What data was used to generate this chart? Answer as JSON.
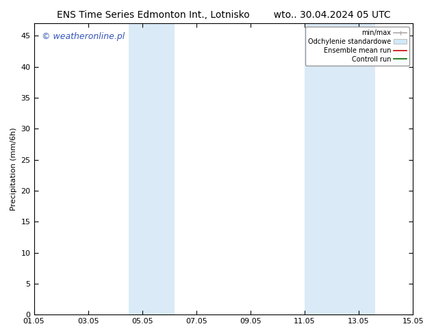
{
  "title_left": "ENS Time Series Edmonton Int., Lotnisko",
  "title_right": "wto.. 30.04.2024 05 UTC",
  "ylabel": "Precipitation (mm/6h)",
  "ylim": [
    0,
    47
  ],
  "yticks": [
    0,
    5,
    10,
    15,
    20,
    25,
    30,
    35,
    40,
    45
  ],
  "xlim": [
    0,
    14
  ],
  "xtick_labels": [
    "01.05",
    "03.05",
    "05.05",
    "07.05",
    "09.05",
    "11.05",
    "13.05",
    "15.05"
  ],
  "xtick_positions": [
    0,
    2,
    4,
    6,
    8,
    10,
    12,
    14
  ],
  "shaded_bands": [
    {
      "x_start": 3.5,
      "x_end": 5.2,
      "color": "#daeaf7"
    },
    {
      "x_start": 10.0,
      "x_end": 12.6,
      "color": "#daeaf7"
    }
  ],
  "watermark_text": "© weatheronline.pl",
  "watermark_color": "#3355bb",
  "watermark_fontsize": 9,
  "legend_items": [
    {
      "label": "min/max",
      "color": "#aaaaaa",
      "lw": 1.2,
      "style": "minmax"
    },
    {
      "label": "Odchylenie standardowe",
      "color": "#d0e8f8",
      "style": "band"
    },
    {
      "label": "Ensemble mean run",
      "color": "#cc0000",
      "lw": 1.2,
      "style": "line"
    },
    {
      "label": "Controll run",
      "color": "#006600",
      "lw": 1.2,
      "style": "line"
    }
  ],
  "background_color": "#ffffff",
  "plot_bg_color": "#ffffff",
  "title_fontsize": 10,
  "axis_fontsize": 8,
  "tick_fontsize": 8
}
